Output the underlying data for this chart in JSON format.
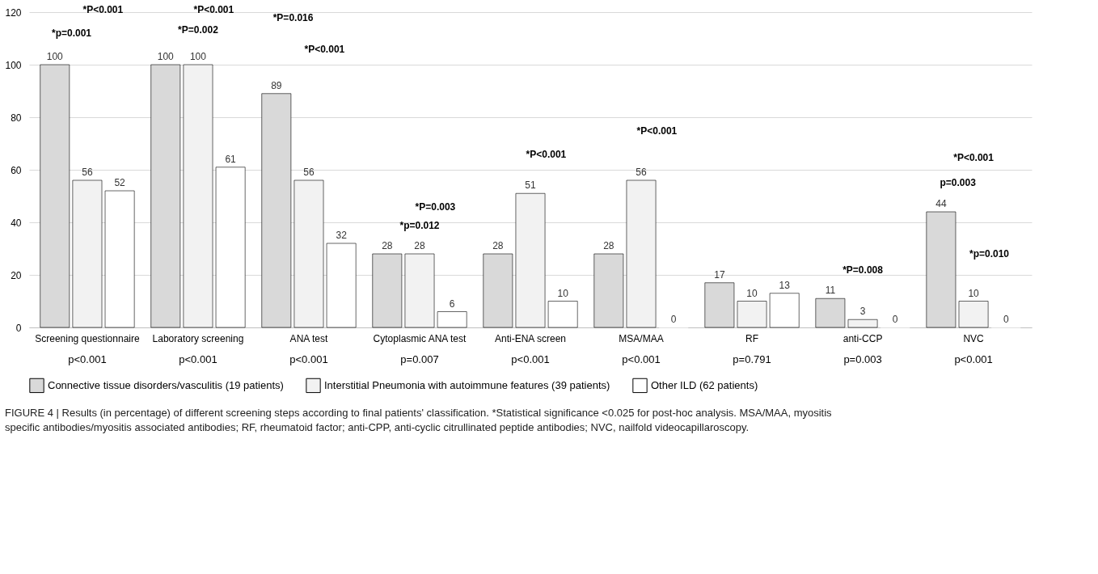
{
  "chart_data": {
    "type": "bar",
    "categories": [
      "Screening questionnaire",
      "Laboratory screening",
      "ANA test",
      "Cytoplasmic ANA test",
      "Anti-ENA screen",
      "MSA/MAA",
      "RF",
      "anti-CCP",
      "NVC"
    ],
    "series": [
      {
        "name": "Connective tissue disorders/vasculitis (19 patients)",
        "color": "#d9d9d9",
        "values": [
          100,
          100,
          89,
          28,
          28,
          28,
          17,
          11,
          44
        ]
      },
      {
        "name": "Interstitial Pneumonia with autoimmune features (39 patients)",
        "color": "#f2f2f2",
        "values": [
          56,
          100,
          56,
          28,
          51,
          56,
          10,
          3,
          10
        ]
      },
      {
        "name": "Other ILD (62 patients)",
        "color": "#ffffff",
        "values": [
          52,
          61,
          32,
          6,
          10,
          0,
          13,
          0,
          0
        ]
      }
    ],
    "ylim": [
      0,
      120
    ],
    "yticks": [
      0,
      20,
      40,
      60,
      80,
      100,
      120
    ],
    "grid": "y",
    "legend": "bottom",
    "data_labels": true,
    "annotations": [
      "*P<0.001",
      "*p=0.001",
      "*P<0.001",
      "*P=0.002",
      "*P=0.016",
      "*P<0.001",
      "*P=0.003",
      "*p=0.012",
      "*P<0.001",
      "*P<0.001",
      "*P=0.008",
      "*P<0.001",
      "p=0.003",
      "*p=0.010",
      "p<0.001",
      "p<0.001",
      "p<0.001",
      "p=0.007",
      "p<0.001",
      "p<0.001",
      "p=0.791",
      "p=0.003",
      "p<0.001",
      "FIGURE 4 | Results (in percentage) of different screening steps according to final patients' classification. *Statistical significance <0.025 for post-hoc analysis. MSA/MAA, myositis specific antibodies/myositis associated antibodies; RF, rheumatoid factor; anti-CPP, anti-cyclic citrullinated peptide antibodies; NVC, nailfold videocapillaroscopy."
    ]
  }
}
